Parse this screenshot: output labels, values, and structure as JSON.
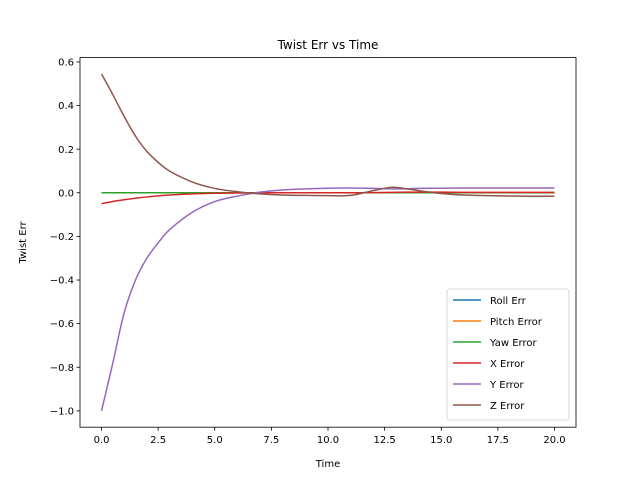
{
  "chart_data": {
    "type": "line",
    "title": "Twist Err vs Time",
    "xlabel": "Time",
    "ylabel": "Twist Err",
    "xlim": [
      -0.95,
      20.95
    ],
    "ylim": [
      -1.075,
      0.62
    ],
    "xticks": [
      0.0,
      2.5,
      5.0,
      7.5,
      10.0,
      12.5,
      15.0,
      17.5,
      20.0
    ],
    "xtick_labels": [
      "0.0",
      "2.5",
      "5.0",
      "7.5",
      "10.0",
      "12.5",
      "15.0",
      "17.5",
      "20.0"
    ],
    "yticks": [
      0.6,
      0.4,
      0.2,
      0.0,
      -0.2,
      -0.4,
      -0.6,
      -0.8,
      -1.0
    ],
    "ytick_labels": [
      "0.6",
      "0.4",
      "0.2",
      "0.0",
      "−0.2",
      "−0.4",
      "−0.6",
      "−0.8",
      "−1.0"
    ],
    "grid": false,
    "legend_position": "lower-right",
    "x": [
      0,
      0.5,
      1,
      1.5,
      2,
      2.5,
      3,
      4,
      5,
      6,
      7,
      8,
      9,
      10,
      11,
      12,
      12.8,
      13.5,
      14,
      15,
      16,
      17,
      18,
      19,
      20
    ],
    "series": [
      {
        "name": "Roll Err",
        "color": "#1f77b4",
        "values": [
          0,
          0,
          0,
          0,
          0,
          0,
          0,
          0,
          0,
          0,
          0,
          0,
          0,
          0,
          0,
          0,
          0,
          0,
          0,
          0,
          0,
          0,
          0,
          0,
          0
        ]
      },
      {
        "name": "Pitch Error",
        "color": "#ff7f0e",
        "values": [
          0,
          0,
          0,
          0,
          0,
          0,
          0,
          0,
          0,
          0,
          0,
          0,
          0,
          0,
          0,
          0,
          0,
          0,
          0,
          0,
          0,
          0,
          0,
          0,
          0
        ]
      },
      {
        "name": "Yaw Error",
        "color": "#2ca02c",
        "values": [
          0,
          0,
          0,
          0,
          0,
          0,
          0,
          0,
          0,
          0,
          0,
          0,
          0,
          0,
          0,
          0,
          0,
          0,
          0,
          0,
          0,
          0,
          0,
          0,
          0
        ]
      },
      {
        "name": "X Error",
        "color": "#d62728",
        "values": [
          -0.05,
          -0.04,
          -0.032,
          -0.025,
          -0.019,
          -0.014,
          -0.01,
          -0.005,
          -0.002,
          -0.001,
          0,
          0,
          0,
          0,
          0,
          0.001,
          0.002,
          0.003,
          0.003,
          0.003,
          0.002,
          0.002,
          0.002,
          0.002,
          0.002
        ]
      },
      {
        "name": "Y Error",
        "color": "#9467bd",
        "values": [
          -1.0,
          -0.78,
          -0.55,
          -0.4,
          -0.3,
          -0.23,
          -0.17,
          -0.09,
          -0.04,
          -0.015,
          0.003,
          0.013,
          0.018,
          0.021,
          0.022,
          0.02,
          0.018,
          0.018,
          0.02,
          0.021,
          0.022,
          0.022,
          0.022,
          0.022,
          0.022
        ]
      },
      {
        "name": "Z Error",
        "color": "#8c564b",
        "values": [
          0.545,
          0.45,
          0.35,
          0.26,
          0.19,
          0.14,
          0.1,
          0.05,
          0.02,
          0.005,
          -0.005,
          -0.01,
          -0.012,
          -0.013,
          -0.012,
          0.01,
          0.025,
          0.018,
          0.01,
          -0.003,
          -0.01,
          -0.013,
          -0.015,
          -0.016,
          -0.016
        ]
      }
    ]
  }
}
